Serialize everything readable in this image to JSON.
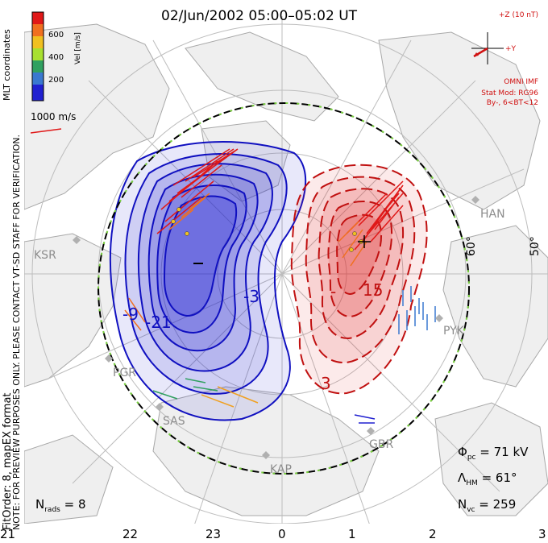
{
  "title": "02/Jun/2002 05:00–05:02 UT",
  "side_notes": {
    "preview": "NOTE: FOR PREVIEW PURPOSES ONLY. PLEASE CONTACT VT-SD STAFF FOR VERIFICATION.",
    "fit": "FitOrder: 8, mapEX format",
    "coords": "MLT coordinates"
  },
  "colorbar": {
    "title": "Vel [m/s]",
    "ticks": [
      "600",
      "400",
      "200"
    ],
    "colors": [
      "#e01818",
      "#f07020",
      "#f0c020",
      "#a8e030",
      "#30a060",
      "#3a78d0",
      "#2020d0"
    ]
  },
  "vector_scale": "1000 m/s",
  "imf": {
    "bz_label": "+Z (10 nT)",
    "by_label": "+Y",
    "source": "OMNI IMF",
    "stat_mod": "Stat Mod: RG96",
    "condition": "By-, 6<BT<12"
  },
  "stats": {
    "phi_sym": "Φ",
    "phi_sub": "pc",
    "phi_val": " = 71 kV",
    "lambda_sym": "Λ",
    "lambda_sub": "HM",
    "lambda_val": " = 61°",
    "nvc_sym": "N",
    "nvc_sub": "vc",
    "nvc_val": " = 259",
    "nrads_sym": "N",
    "nrads_sub": "rads",
    "nrads_val": " = 8"
  },
  "mlt_labels": [
    "21",
    "22",
    "23",
    "0",
    "1",
    "2",
    "3"
  ],
  "lat_labels": [
    "60°",
    "50°"
  ],
  "contour_labels": [
    "-9",
    "-21",
    "-3",
    "15",
    "3",
    "-"
  ],
  "sites": [
    "KSR",
    "PGR",
    "SAS",
    "KAP",
    "GBR",
    "PYK",
    "HAN"
  ],
  "colors": {
    "negative": "#1010c0",
    "positive": "#c01010",
    "land": "#efefef",
    "coast": "#aaaaaa"
  }
}
